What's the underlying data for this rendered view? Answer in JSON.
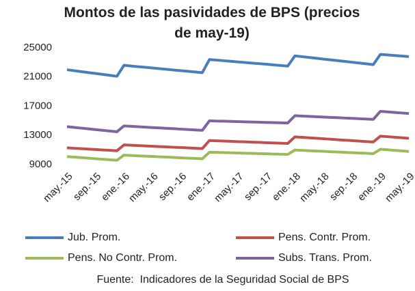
{
  "chart_data": {
    "type": "line",
    "title": "Montos de las pasividades de BPS (precios de may-19)",
    "source": "Fuente:  Indicadores de la Seguridad Social de BPS",
    "categories": [
      "may.-15",
      null,
      null,
      null,
      "sep.-15",
      null,
      null,
      null,
      "ene.-16",
      null,
      null,
      null,
      "may.-16",
      null,
      null,
      null,
      "sep.-16",
      null,
      null,
      null,
      "ene.-17",
      null,
      null,
      null,
      "may.-17",
      null,
      null,
      null,
      "sep.-17",
      null,
      null,
      null,
      "ene.-18",
      null,
      null,
      null,
      "may.-18",
      null,
      null,
      null,
      "sep.-18",
      null,
      null,
      null,
      "ene.-19",
      null,
      null,
      null,
      "may.-19"
    ],
    "ylim": [
      9000,
      25000
    ],
    "yticks": [
      9000,
      13000,
      17000,
      21000,
      25000
    ],
    "grid": false,
    "series": [
      {
        "name": "Jub. Prom.",
        "color": "#4a7ebb",
        "values": [
          22000,
          21870,
          21740,
          21610,
          21490,
          21360,
          21230,
          21100,
          22600,
          22510,
          22420,
          22330,
          22240,
          22150,
          22050,
          21960,
          21870,
          21780,
          21690,
          21600,
          23400,
          23320,
          23240,
          23150,
          23070,
          22990,
          22910,
          22830,
          22750,
          22660,
          22580,
          22500,
          23900,
          23790,
          23680,
          23570,
          23460,
          23350,
          23250,
          23140,
          23030,
          22920,
          22810,
          22700,
          24100,
          24030,
          23950,
          23880,
          23800
        ]
      },
      {
        "name": "Pens. Contr. Prom.",
        "color": "#c0504d",
        "values": [
          11300,
          11240,
          11190,
          11130,
          11070,
          11010,
          10960,
          10900,
          11700,
          11650,
          11610,
          11560,
          11520,
          11470,
          11430,
          11380,
          11340,
          11290,
          11250,
          11200,
          12300,
          12260,
          12230,
          12190,
          12150,
          12120,
          12080,
          12050,
          12010,
          11970,
          11940,
          11900,
          12800,
          12740,
          12670,
          12610,
          12550,
          12480,
          12420,
          12350,
          12290,
          12230,
          12160,
          12100,
          12900,
          12830,
          12750,
          12680,
          12600
        ]
      },
      {
        "name": "Pens. No Contr. Prom.",
        "color": "#9bbb59",
        "values": [
          10100,
          10030,
          9960,
          9890,
          9810,
          9740,
          9670,
          9600,
          10300,
          10250,
          10210,
          10160,
          10120,
          10070,
          10030,
          9980,
          9940,
          9890,
          9850,
          9800,
          10700,
          10670,
          10650,
          10620,
          10590,
          10560,
          10540,
          10510,
          10480,
          10450,
          10430,
          10400,
          11000,
          10950,
          10910,
          10860,
          10820,
          10770,
          10730,
          10680,
          10640,
          10590,
          10550,
          10500,
          11100,
          11030,
          10950,
          10880,
          10800
        ]
      },
      {
        "name": "Subs. Trans. Prom.",
        "color": "#8064a2",
        "values": [
          14200,
          14100,
          14000,
          13900,
          13800,
          13700,
          13600,
          13500,
          14300,
          14250,
          14190,
          14140,
          14080,
          14030,
          13970,
          13920,
          13860,
          13810,
          13750,
          13700,
          15000,
          14970,
          14950,
          14920,
          14890,
          14860,
          14840,
          14810,
          14780,
          14750,
          14730,
          14700,
          15700,
          15650,
          15610,
          15560,
          15520,
          15470,
          15430,
          15380,
          15340,
          15290,
          15250,
          15200,
          16300,
          16230,
          16150,
          16080,
          16000
        ]
      }
    ]
  }
}
